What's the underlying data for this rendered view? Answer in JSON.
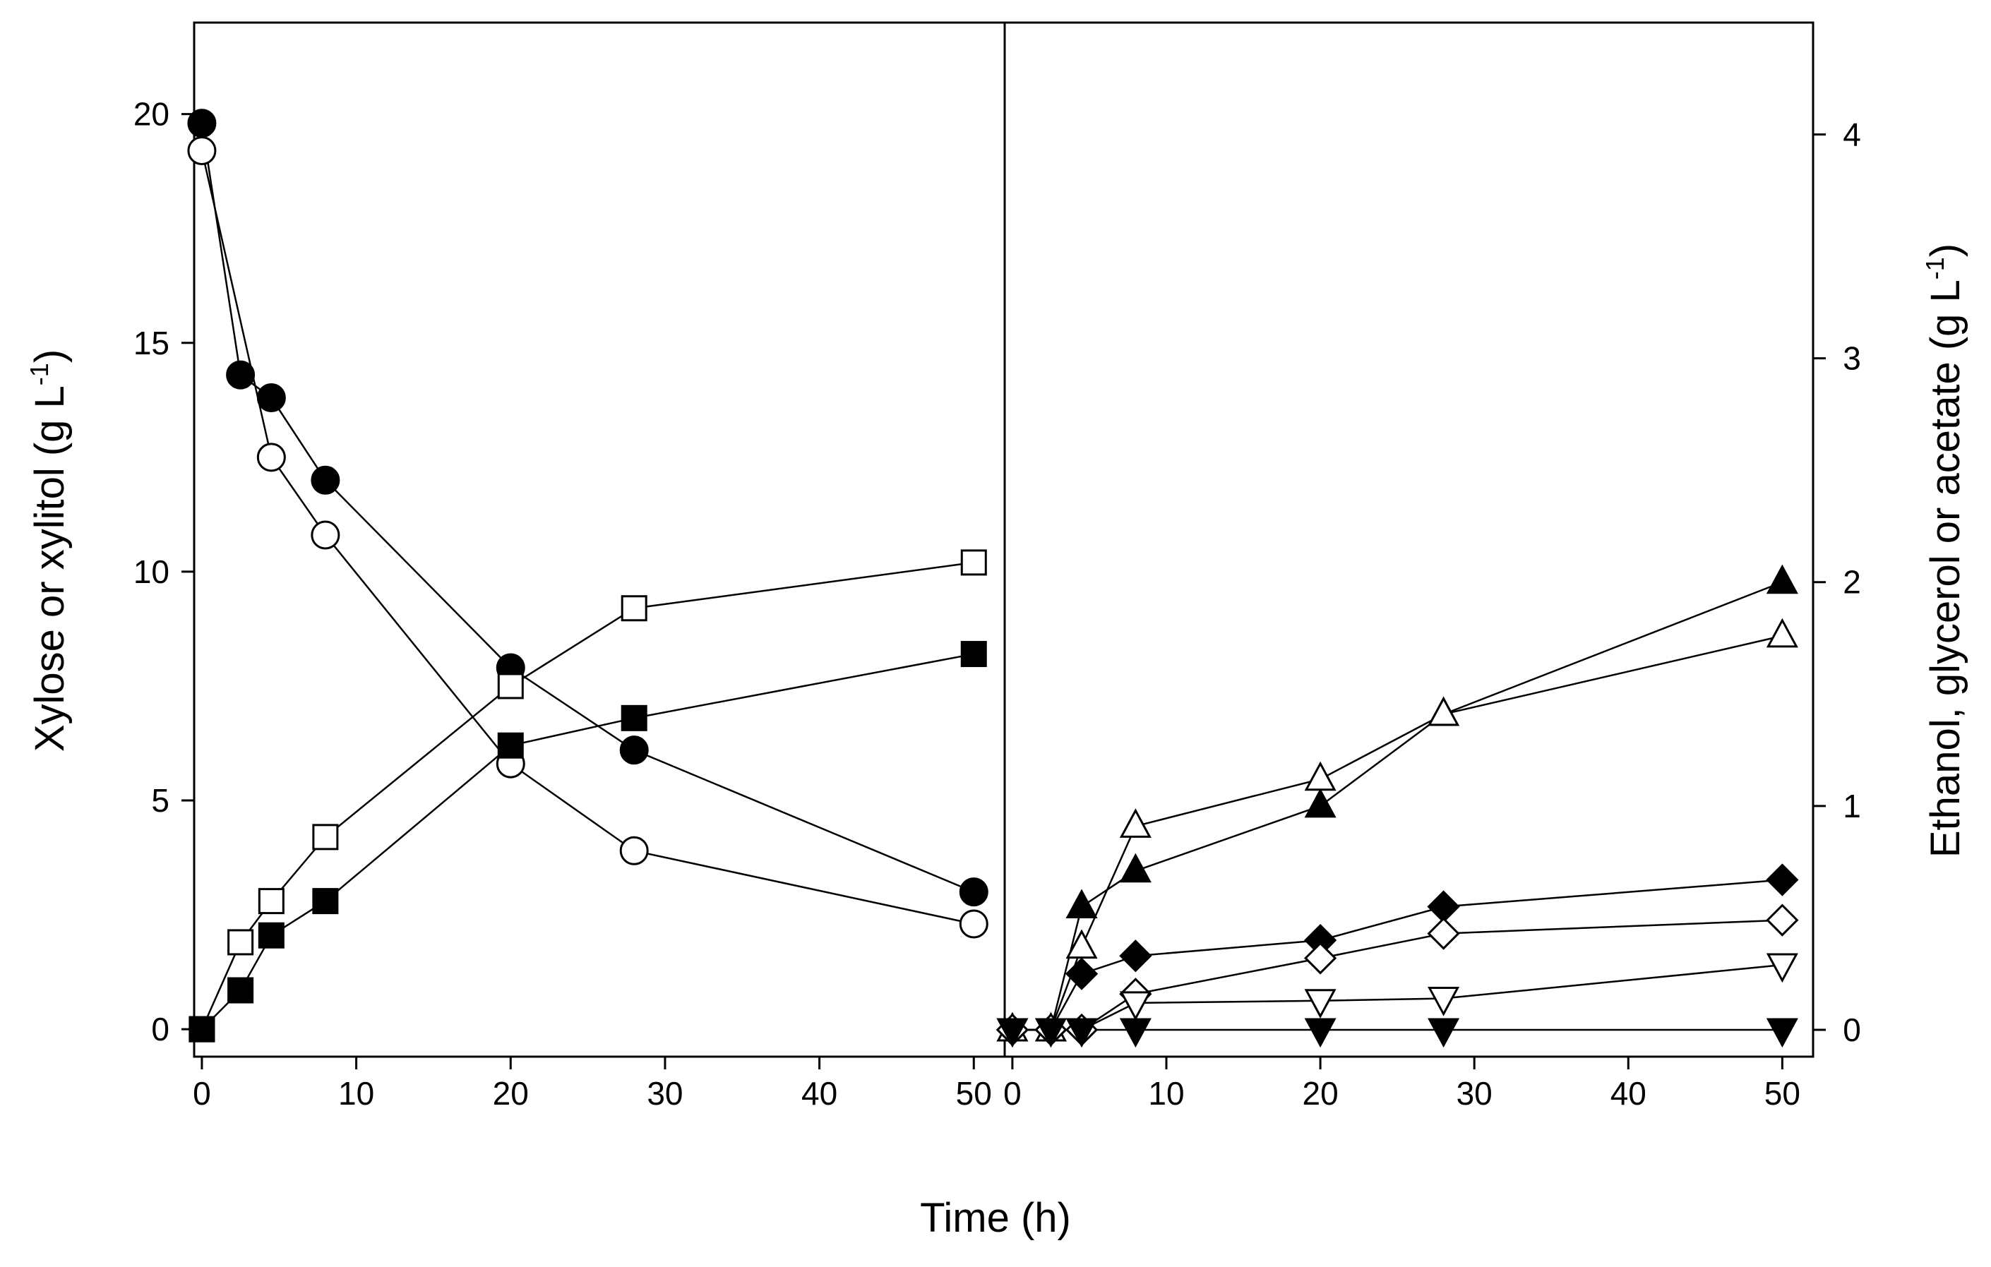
{
  "chart_data": [
    {
      "type": "line",
      "panel": "left",
      "xlabel": "Time (h)",
      "ylabel": "Xylose or xylitol (g L",
      "ylabel_sup": "-1",
      "ylabel_end": ")",
      "xlim": [
        -0.5,
        52
      ],
      "ylim": [
        -0.6,
        22
      ],
      "xticks": [
        0,
        10,
        20,
        30,
        40,
        50
      ],
      "yticks": [
        0,
        5,
        10,
        15,
        20
      ],
      "series": [
        {
          "name": "xylose-filled-circle",
          "marker": "circle",
          "fill": "#000000",
          "x": [
            0,
            2.5,
            4.5,
            8,
            20,
            28,
            50
          ],
          "y": [
            19.8,
            14.3,
            13.8,
            12.0,
            7.9,
            6.1,
            3.0
          ]
        },
        {
          "name": "xylose-open-circle",
          "marker": "circle",
          "fill": "#ffffff",
          "x": [
            0,
            4.5,
            8,
            20,
            28,
            50
          ],
          "y": [
            19.2,
            12.5,
            10.8,
            5.8,
            3.9,
            2.3
          ]
        },
        {
          "name": "xylitol-open-square",
          "marker": "square",
          "fill": "#ffffff",
          "x": [
            0,
            2.5,
            4.5,
            8,
            20,
            28,
            50
          ],
          "y": [
            0,
            1.9,
            2.8,
            4.2,
            7.5,
            9.2,
            10.2
          ]
        },
        {
          "name": "xylitol-filled-square",
          "marker": "square",
          "fill": "#000000",
          "x": [
            0,
            2.5,
            4.5,
            8,
            20,
            28,
            50
          ],
          "y": [
            0,
            0.85,
            2.05,
            2.8,
            6.2,
            6.8,
            8.2
          ]
        }
      ]
    },
    {
      "type": "line",
      "panel": "right",
      "xlabel": "Time (h)",
      "ylabel": "Ethanol, glycerol or acetate (g L",
      "ylabel_sup": "-1",
      "ylabel_end": ")",
      "xlim": [
        -0.5,
        52
      ],
      "ylim": [
        -0.12,
        4.5
      ],
      "xticks": [
        0,
        10,
        20,
        30,
        40,
        50
      ],
      "yticks": [
        0,
        1,
        2,
        3,
        4
      ],
      "series": [
        {
          "name": "ethanol-filled-triangle",
          "marker": "triangle-up",
          "fill": "#000000",
          "x": [
            0,
            2.5,
            4.5,
            8,
            20,
            28,
            50
          ],
          "y": [
            0,
            0,
            0.55,
            0.71,
            1.0,
            1.41,
            2.0
          ]
        },
        {
          "name": "ethanol-open-triangle",
          "marker": "triangle-up",
          "fill": "#ffffff",
          "x": [
            0,
            2.5,
            4.5,
            8,
            20,
            28,
            50
          ],
          "y": [
            0,
            0,
            0.37,
            0.91,
            1.12,
            1.41,
            1.76
          ]
        },
        {
          "name": "glycerol-filled-diamond",
          "marker": "diamond",
          "fill": "#000000",
          "x": [
            0,
            2.5,
            4.5,
            8,
            20,
            28,
            50
          ],
          "y": [
            0,
            0,
            0.25,
            0.33,
            0.4,
            0.55,
            0.67
          ]
        },
        {
          "name": "glycerol-open-diamond",
          "marker": "diamond",
          "fill": "#ffffff",
          "x": [
            0,
            2.5,
            4.5,
            8,
            20,
            28,
            50
          ],
          "y": [
            0,
            0,
            0,
            0.16,
            0.32,
            0.43,
            0.49
          ]
        },
        {
          "name": "acetate-open-triangle-down",
          "marker": "triangle-down",
          "fill": "#ffffff",
          "x": [
            0,
            2.5,
            4.5,
            8,
            20,
            28,
            50
          ],
          "y": [
            0,
            0,
            0,
            0.12,
            0.13,
            0.14,
            0.29
          ]
        },
        {
          "name": "acetate-filled-triangle-down",
          "marker": "triangle-down",
          "fill": "#000000",
          "x": [
            0,
            2.5,
            4.5,
            8,
            20,
            28,
            50
          ],
          "y": [
            0,
            0,
            0,
            0,
            0,
            0,
            0
          ]
        }
      ]
    }
  ]
}
